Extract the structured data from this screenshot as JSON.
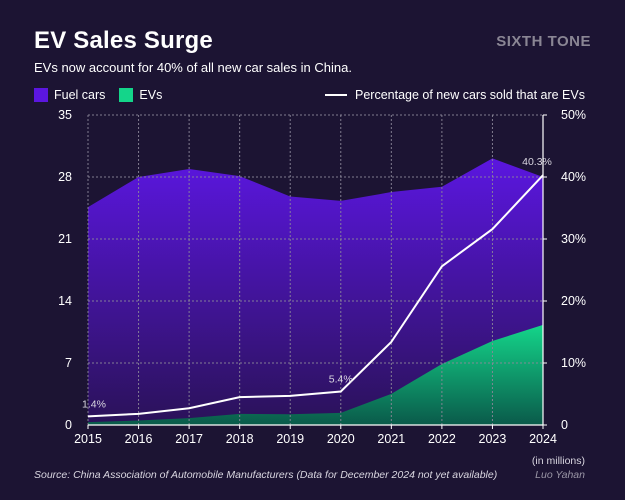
{
  "header": {
    "title": "EV Sales Surge",
    "brand": "SIXTH TONE",
    "subtitle": "EVs now account for 40% of all new car sales in China."
  },
  "legend": {
    "fuel": "Fuel cars",
    "evs": "EVs",
    "line": "Percentage of new cars sold that are EVs"
  },
  "colors": {
    "fuel_top": "#5b16e0",
    "fuel_bottom": "#2a1258",
    "ev_top": "#14d58a",
    "ev_bottom": "#0a5a4a",
    "line": "#ffffff",
    "grid": "#8c8899"
  },
  "footer": {
    "unit": "(in millions)",
    "author": "Luo Yahan",
    "source": "Source: China Association of Automobile Manufacturers (Data for December 2024 not yet available)"
  },
  "chart_data": {
    "type": "area",
    "title": "EV Sales Surge",
    "x": [
      "2015",
      "2016",
      "2017",
      "2018",
      "2019",
      "2020",
      "2021",
      "2022",
      "2023",
      "2024"
    ],
    "series": [
      {
        "name": "Fuel cars",
        "axis": "left",
        "values": [
          24.6,
          28.0,
          28.9,
          28.1,
          25.8,
          25.3,
          26.3,
          26.9,
          30.1,
          28.0
        ]
      },
      {
        "name": "EVs",
        "axis": "left",
        "values": [
          0.33,
          0.51,
          0.78,
          1.26,
          1.21,
          1.37,
          3.52,
          6.89,
          9.49,
          11.3
        ]
      },
      {
        "name": "Percentage of new cars sold that are EVs",
        "axis": "right",
        "type": "line",
        "values": [
          1.4,
          1.8,
          2.7,
          4.5,
          4.7,
          5.4,
          13.4,
          25.6,
          31.6,
          40.3
        ]
      }
    ],
    "y_left": {
      "min": 0,
      "max": 35,
      "ticks": [
        0,
        7,
        14,
        21,
        28,
        35
      ]
    },
    "y_right": {
      "min": 0,
      "max": 50,
      "ticks": [
        "0",
        "10%",
        "20%",
        "30%",
        "40%",
        "50%"
      ]
    },
    "annotations": [
      {
        "index": 0,
        "label": "1.4%"
      },
      {
        "index": 5,
        "label": "5.4%"
      },
      {
        "index": 9,
        "label": "40.3%"
      }
    ]
  }
}
